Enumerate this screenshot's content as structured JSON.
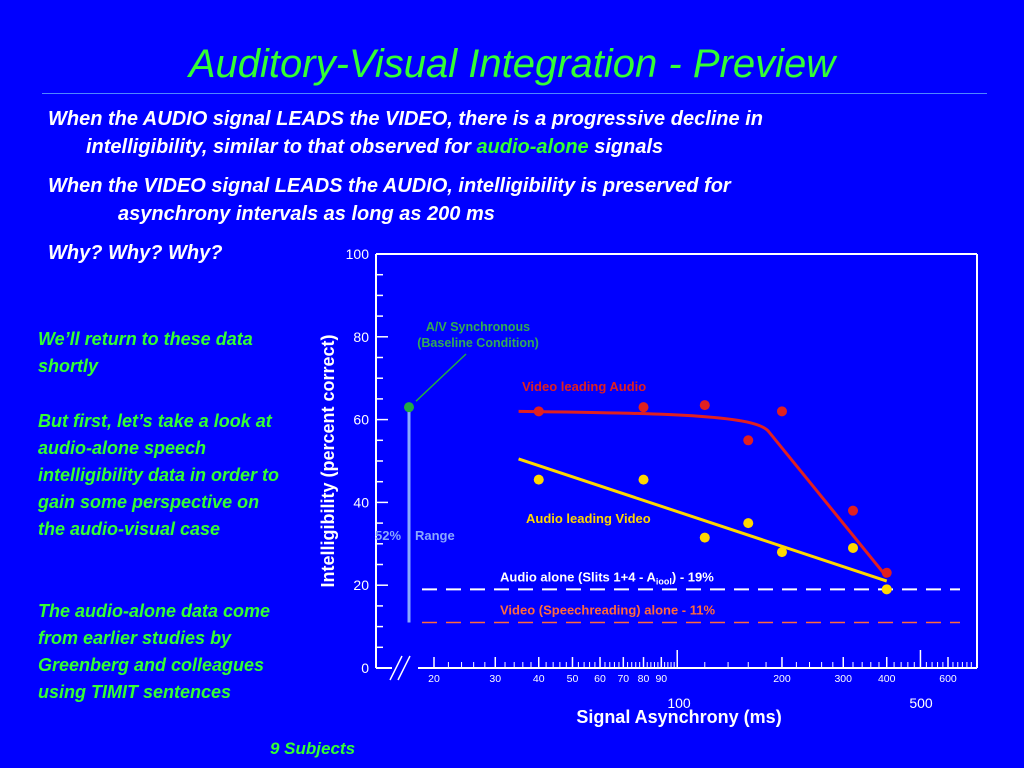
{
  "slide": {
    "title": "Auditory-Visual Integration - Preview",
    "bullet1": {
      "line1": "When the AUDIO signal LEADS the VIDEO, there is a progressive decline in",
      "line2_pre": "intelligibility, similar to that observed for ",
      "line2_green": "audio-alone",
      "line2_post": " signals"
    },
    "bullet2": {
      "line1": "When the VIDEO signal LEADS the AUDIO, intelligibility is preserved for",
      "line2": "asynchrony intervals as long as 200 ms"
    },
    "bullet3": "Why? Why? Why?",
    "side_note1": "We’ll return to these data shortly",
    "side_note2": "But first, let’s take a look at audio-alone speech intelligibility data in order to gain some perspective on the audio-visual case",
    "side_note3": "The audio-alone data come from earlier studies by Greenberg and colleagues using TIMIT sentences",
    "subjects_note": "9 Subjects"
  },
  "colors": {
    "background": "#0000ff",
    "accent_green": "#33ff33",
    "video_leading": "#e02020",
    "audio_leading": "#ffd700",
    "baseline": "#22aa44",
    "speechreading": "#ff6a3c",
    "range_bar": "#8aa8ff"
  },
  "chart_data": {
    "type": "scatter",
    "xlabel": "Signal Asynchrony (ms)",
    "ylabel": "Intelligibility (percent correct)",
    "x_scale": "log",
    "xlim": [
      15,
      700
    ],
    "ylim": [
      0,
      100
    ],
    "y_ticks": [
      0,
      20,
      40,
      60,
      80,
      100
    ],
    "x_tick_labels": [
      "20",
      "30",
      "40",
      "50",
      "60",
      "70",
      "80",
      "90",
      "100",
      "200",
      "300",
      "400",
      "500",
      "600"
    ],
    "series": [
      {
        "name": "Video leading Audio",
        "x": [
          40,
          80,
          120,
          160,
          200,
          320,
          400
        ],
        "y": [
          62,
          63,
          63.5,
          55,
          62,
          38,
          23
        ],
        "fit_x": [
          35,
          100,
          170,
          400
        ],
        "fit_y": [
          62,
          61.5,
          57,
          22
        ]
      },
      {
        "name": "Audio leading Video",
        "x": [
          40,
          80,
          120,
          160,
          200,
          320,
          400
        ],
        "y": [
          45.5,
          45.5,
          31.5,
          35,
          28,
          29,
          19
        ],
        "fit_x": [
          35,
          400
        ],
        "fit_y": [
          50.5,
          21
        ]
      }
    ],
    "baseline": {
      "label_line1": "A/V Synchronous",
      "label_line2": "(Baseline Condition)",
      "y": 63
    },
    "range": {
      "percent": "52%",
      "word": "Range",
      "y_low": 11,
      "y_high": 63
    },
    "reference_lines": [
      {
        "label_pre": "Audio alone (Slits 1+4 - A",
        "label_sub": "iool",
        "label_post": ") - 19%",
        "y": 19
      },
      {
        "label": "Video (Speechreading) alone - 11%",
        "y": 11
      }
    ],
    "axis_number_100": "100",
    "axis_number_500": "500"
  }
}
